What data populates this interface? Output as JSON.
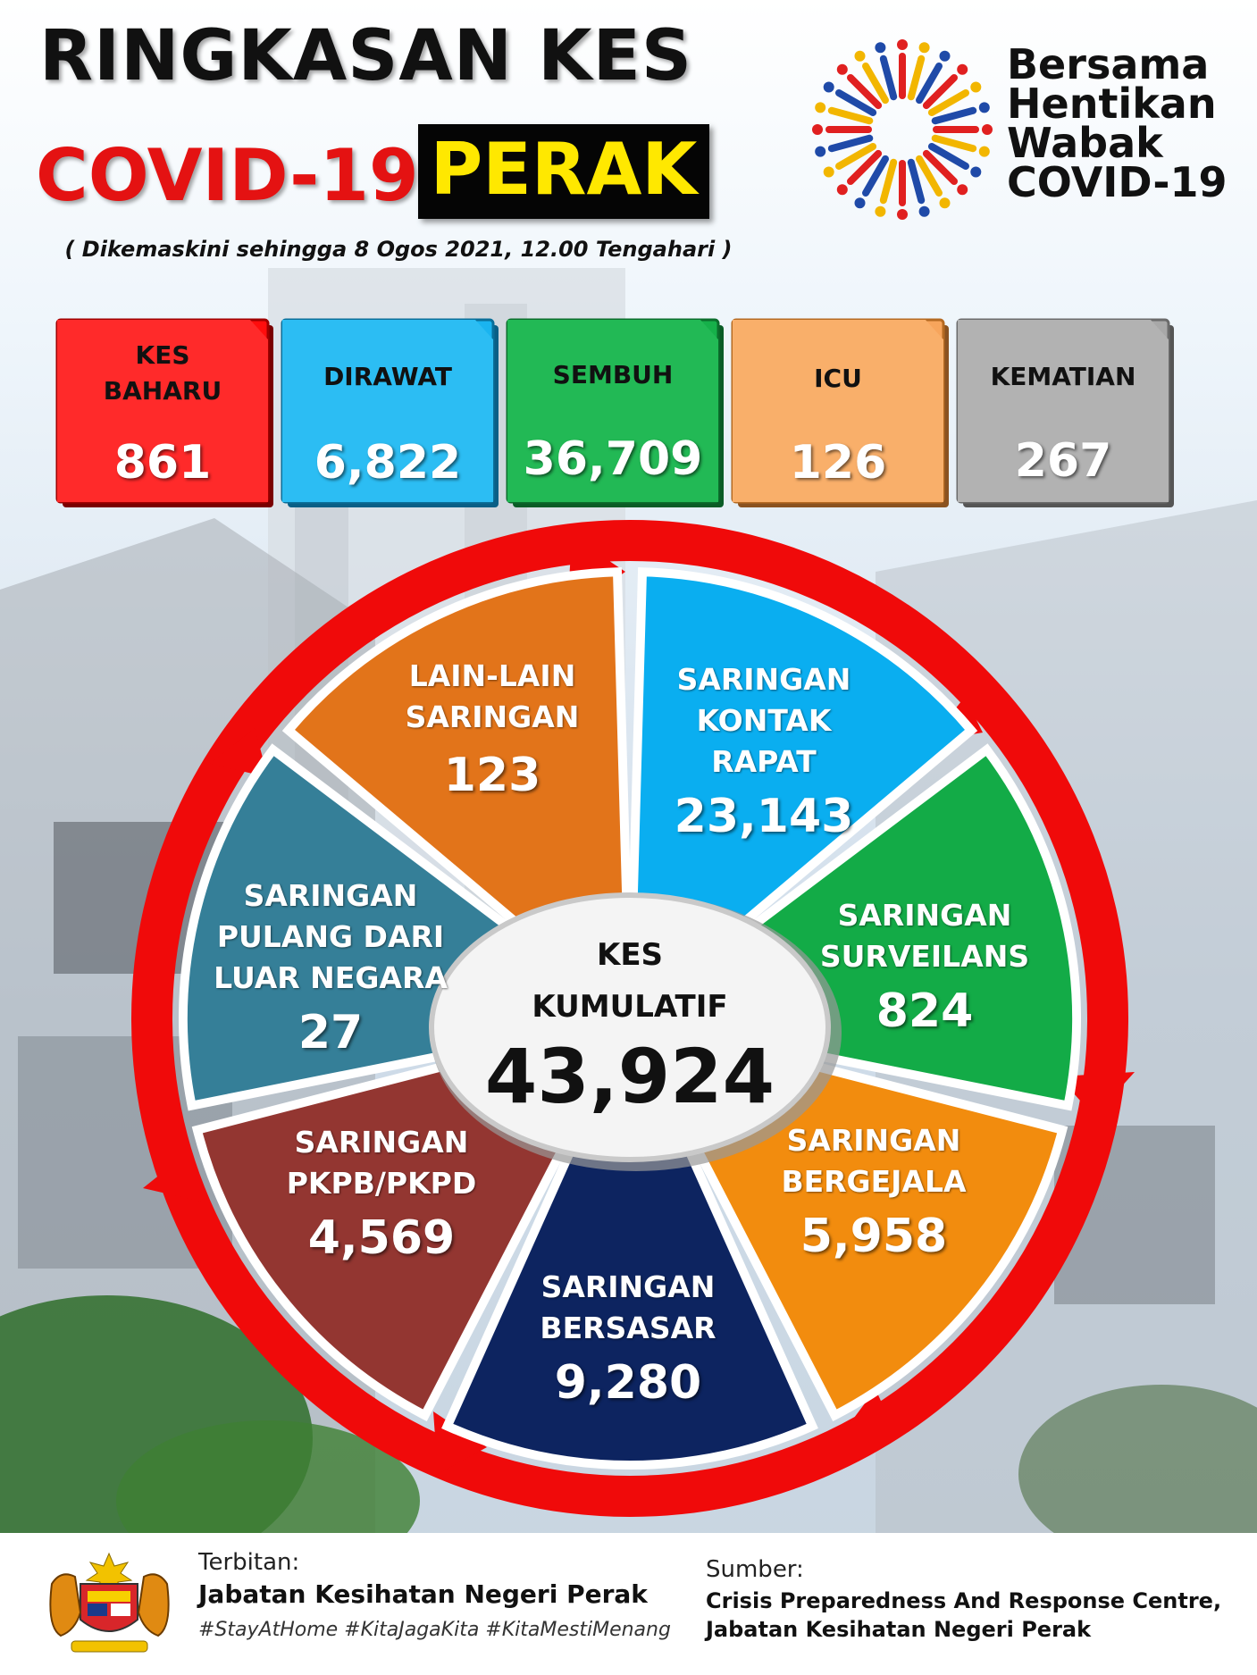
{
  "header": {
    "title_line1": "RINGKASAN KES",
    "title_line2_left": "COVID-19",
    "title_line2_right": "PERAK",
    "updated": "( Dikemaskini  sehingga 8 Ogos 2021, 12.00 Tengahari )"
  },
  "slogan": {
    "line1": "Bersama",
    "line2": "Hentikan",
    "line3": "Wabak",
    "line4": "COVID-19"
  },
  "stats": [
    {
      "label_line1": "KES",
      "label_line2": "BAHARU",
      "value": "861",
      "color": "#ff0d0d"
    },
    {
      "label_line1": "DIRAWAT",
      "label_line2": "",
      "value": "6,822",
      "color": "#1ab4f0"
    },
    {
      "label_line1": "SEMBUH",
      "label_line2": "",
      "value": "36,709",
      "color": "#16b04a"
    },
    {
      "label_line1": "ICU",
      "label_line2": "",
      "value": "126",
      "color": "#f7a55c"
    },
    {
      "label_line1": "KEMATIAN",
      "label_line2": "",
      "value": "267",
      "color": "#a8a8a8"
    }
  ],
  "segments": [
    {
      "label_line1": "SARINGAN",
      "label_line2": "KONTAK",
      "label_line3": "RAPAT",
      "value": "23,143",
      "color": "#0aaef0"
    },
    {
      "label_line1": "SARINGAN",
      "label_line2": "SURVEILANS",
      "label_line3": "",
      "value": "824",
      "color": "#13ab47"
    },
    {
      "label_line1": "SARINGAN",
      "label_line2": "BERGEJALA",
      "label_line3": "",
      "value": "5,958",
      "color": "#f28c0e"
    },
    {
      "label_line1": "SARINGAN",
      "label_line2": "BERSASAR",
      "label_line3": "",
      "value": "9,280",
      "color": "#0d2460"
    },
    {
      "label_line1": "SARINGAN",
      "label_line2": "PKPB/PKPD",
      "label_line3": "",
      "value": "4,569",
      "color": "#933631"
    },
    {
      "label_line1": "SARINGAN",
      "label_line2": "PULANG DARI",
      "label_line3": "LUAR NEGARA",
      "value": "27",
      "color": "#357f98"
    },
    {
      "label_line1": "LAIN-LAIN",
      "label_line2": "SARINGAN",
      "label_line3": "",
      "value": "123",
      "color": "#e2741a"
    }
  ],
  "center": {
    "label_line1": "KES",
    "label_line2": "KUMULATIF",
    "value": "43,924"
  },
  "footer": {
    "publisher_label": "Terbitan:",
    "publisher": "Jabatan Kesihatan Negeri Perak",
    "hashtags": "#StayAtHome #KitaJagaKita #KitaMestiMenang",
    "source_label": "Sumber:",
    "source_line1": "Crisis Preparedness And Response Centre,",
    "source_line2": "Jabatan Kesihatan Negeri Perak"
  },
  "colors": {
    "title_red": "#e41212",
    "perak_yellow": "#ffe800",
    "arrow_red": "#f00a0a"
  },
  "icons": {
    "logo": "bersama-hentikan-wabak-people-ring-logo",
    "crest": "malaysia-coat-of-arms-icon"
  }
}
